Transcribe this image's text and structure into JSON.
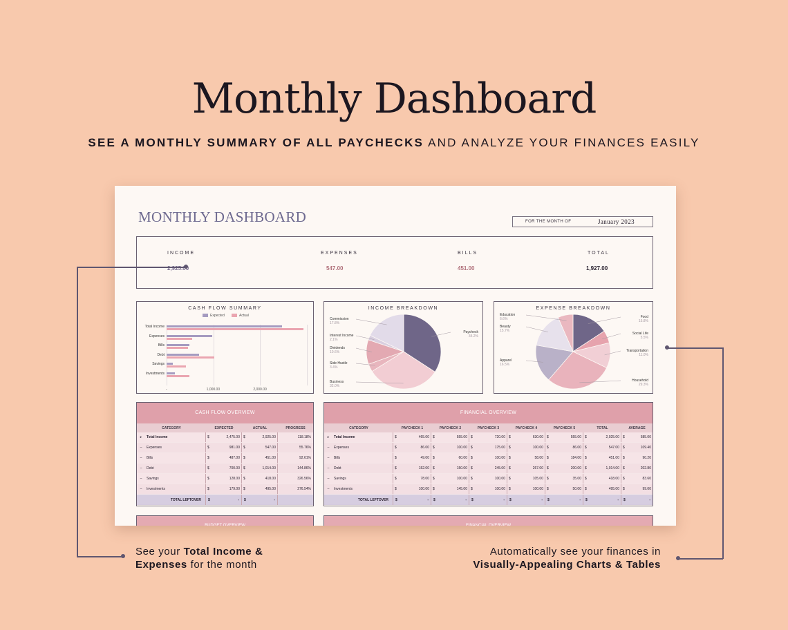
{
  "hero": {
    "title": "Monthly Dashboard",
    "subtitle_bold": "SEE A MONTHLY SUMMARY OF ALL PAYCHECKS",
    "subtitle_rest": " AND ANALYZE YOUR FINANCES EASILY"
  },
  "sheet": {
    "title": "MONTHLY DASHBOARD",
    "month_label": "FOR THE MONTH OF",
    "month_value": "January 2023",
    "kpis": [
      {
        "label": "INCOME",
        "value": "2,925.00",
        "color": "#7a6e90"
      },
      {
        "label": "EXPENSES",
        "value": "547.00",
        "color": "#b0707a"
      },
      {
        "label": "BILLS",
        "value": "451.00",
        "color": "#b0707a"
      },
      {
        "label": "TOTAL",
        "value": "1,927.00",
        "color": "#2a2230"
      }
    ],
    "panels": {
      "cash_flow_title": "CASH FLOW SUMMARY",
      "income_title": "INCOME BREAKDOWN",
      "expense_title": "EXPENSE BREAKDOWN"
    },
    "cash_flow_table": {
      "title": "CASH FLOW OVERVIEW",
      "headers": [
        "CATEGORY",
        "EXPECTED",
        "ACTUAL",
        "PROGRESS"
      ],
      "rows": [
        {
          "bullet": "▸",
          "name": "Total Income",
          "bold": true,
          "expected": "2,475.00",
          "actual": "2,925.00",
          "progress": "118.18%"
        },
        {
          "bullet": "–",
          "name": "Expenses",
          "bold": false,
          "expected": "981.00",
          "actual": "547.00",
          "progress": "55.76%"
        },
        {
          "bullet": "–",
          "name": "Bills",
          "bold": false,
          "expected": "487.00",
          "actual": "451.00",
          "progress": "92.61%"
        },
        {
          "bullet": "–",
          "name": "Debt",
          "bold": false,
          "expected": "700.00",
          "actual": "1,014.00",
          "progress": "144.86%"
        },
        {
          "bullet": "–",
          "name": "Savings",
          "bold": false,
          "expected": "128.00",
          "actual": "418.00",
          "progress": "326.56%"
        },
        {
          "bullet": "–",
          "name": "Investments",
          "bold": false,
          "expected": "179.00",
          "actual": "495.00",
          "progress": "276.54%"
        }
      ],
      "footer": {
        "label": "TOTAL LEFTOVER",
        "expected": "-",
        "actual": "-"
      }
    },
    "financial_table": {
      "title": "FINANCIAL OVERVIEW",
      "headers": [
        "CATEGORY",
        "PAYCHECK 1",
        "PAYCHECK 2",
        "PAYCHECK 3",
        "PAYCHECK 4",
        "PAYCHECK 5",
        "TOTAL",
        "AVERAGE"
      ],
      "rows": [
        {
          "bullet": "▸",
          "name": "Total Income",
          "bold": true,
          "vals": [
            "465.00",
            "555.00",
            "720.00",
            "630.00",
            "555.00",
            "2,925.00",
            "585.00"
          ]
        },
        {
          "bullet": "–",
          "name": "Expenses",
          "bold": false,
          "vals": [
            "86.00",
            "100.00",
            "175.00",
            "100.00",
            "86.00",
            "547.00",
            "109.40"
          ]
        },
        {
          "bullet": "–",
          "name": "Bills",
          "bold": false,
          "vals": [
            "49.00",
            "60.00",
            "100.00",
            "58.00",
            "184.00",
            "451.00",
            "90.20"
          ]
        },
        {
          "bullet": "–",
          "name": "Debt",
          "bold": false,
          "vals": [
            "152.00",
            "150.00",
            "245.00",
            "267.00",
            "200.00",
            "1,014.00",
            "202.80"
          ]
        },
        {
          "bullet": "–",
          "name": "Savings",
          "bold": false,
          "vals": [
            "78.00",
            "100.00",
            "100.00",
            "105.00",
            "35.00",
            "418.00",
            "83.60"
          ]
        },
        {
          "bullet": "–",
          "name": "Investments",
          "bold": false,
          "vals": [
            "100.00",
            "145.00",
            "100.00",
            "100.00",
            "50.00",
            "495.00",
            "99.00"
          ]
        }
      ],
      "footer": {
        "label": "TOTAL LEFTOVER",
        "vals": [
          "-",
          "-",
          "-",
          "-",
          "-",
          "-",
          "-"
        ]
      }
    },
    "bottom_headers": [
      "BUDGET OVERVIEW",
      "FINANCIAL OVERVIEW"
    ],
    "currency_symbol": "$"
  },
  "callouts": {
    "left_pre": "See your ",
    "left_bold": "Total Income &",
    "left_bold2": "Expenses",
    "left_post": " for the month",
    "right_line1": "Automatically see your finances in",
    "right_bold": "Visually-Appealing Charts & Tables"
  },
  "chart_data": [
    {
      "type": "bar",
      "orientation": "horizontal",
      "title": "CASH FLOW SUMMARY",
      "categories": [
        "Total Income",
        "Expenses",
        "Bills",
        "Debt",
        "Savings",
        "Investments"
      ],
      "series": [
        {
          "name": "Expected",
          "values": [
            2475,
            981,
            487,
            700,
            128,
            179
          ],
          "color": "#a59bc0"
        },
        {
          "name": "Actual",
          "values": [
            2925,
            547,
            451,
            1014,
            418,
            495
          ],
          "color": "#eaa5b0"
        }
      ],
      "tick_labels": [
        "-",
        "1,000.00",
        "2,000.00"
      ],
      "xlim": [
        0,
        3000
      ],
      "grid": true,
      "legend": "top"
    },
    {
      "type": "pie",
      "title": "INCOME BREAKDOWN",
      "slices": [
        {
          "label": "Paycheck",
          "pct": "34.2%",
          "value": 34.2,
          "color": "#6f6688"
        },
        {
          "label": "Business",
          "pct": "32.0%",
          "value": 32.0,
          "color": "#f2cdd3"
        },
        {
          "label": "Side Hustle",
          "pct": "3.4%",
          "value": 3.4,
          "color": "#e8b6be"
        },
        {
          "label": "Dividends",
          "pct": "10.6%",
          "value": 10.6,
          "color": "#e3a9b2"
        },
        {
          "label": "Interest Income",
          "pct": "2.1%",
          "value": 2.1,
          "color": "#d9cfe0"
        },
        {
          "label": "Commission",
          "pct": "17.8%",
          "value": 17.8,
          "color": "#e2dbe9"
        }
      ]
    },
    {
      "type": "pie",
      "title": "EXPENSE BREAKDOWN",
      "slices": [
        {
          "label": "Food",
          "pct": "15.8%",
          "value": 15.8,
          "color": "#6f6688"
        },
        {
          "label": "Social Life",
          "pct": "5.5%",
          "value": 5.5,
          "color": "#e6a3ad"
        },
        {
          "label": "Transportation",
          "pct": "11.0%",
          "value": 11.0,
          "color": "#f1cfd5"
        },
        {
          "label": "Household",
          "pct": "29.3%",
          "value": 29.3,
          "color": "#e9b3bc"
        },
        {
          "label": "Apparel",
          "pct": "16.5%",
          "value": 16.5,
          "color": "#b9b1c8"
        },
        {
          "label": "Beauty",
          "pct": "15.7%",
          "value": 15.7,
          "color": "#e7e1ec"
        },
        {
          "label": "Education",
          "pct": "6.6%",
          "value": 6.6,
          "color": "#eab8c0"
        }
      ]
    }
  ]
}
